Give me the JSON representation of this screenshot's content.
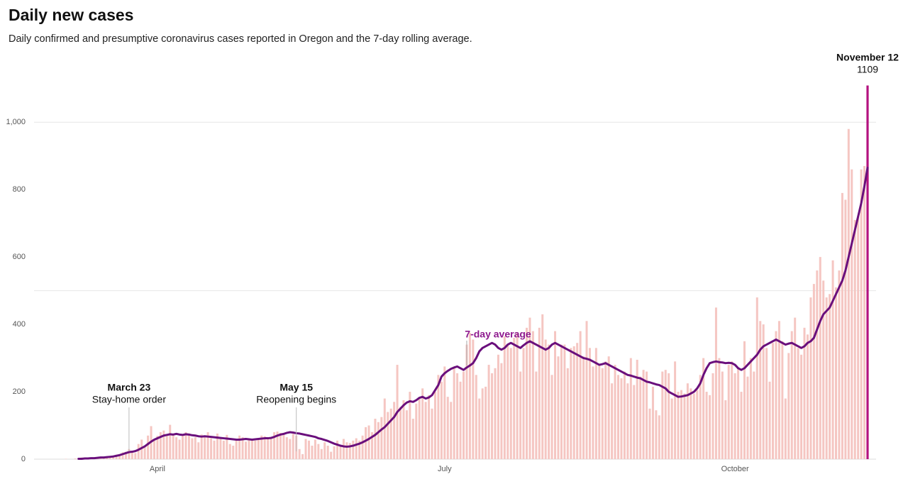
{
  "chart_data": {
    "type": "bar",
    "title": "Daily new cases",
    "subtitle": "Daily confirmed and presumptive coronavirus cases reported in Oregon and the 7-day rolling average.",
    "categories": [
      null,
      null,
      null,
      null,
      null,
      null,
      null,
      null,
      null,
      null,
      null,
      null,
      null,
      null,
      null,
      null,
      null,
      null,
      null,
      null,
      null,
      null,
      null,
      null,
      null,
      null,
      null,
      null,
      null,
      null,
      null,
      "April",
      null,
      null,
      null,
      null,
      null,
      null,
      null,
      null,
      null,
      null,
      null,
      null,
      null,
      null,
      null,
      null,
      null,
      null,
      null,
      null,
      null,
      null,
      null,
      null,
      null,
      null,
      null,
      null,
      null,
      null,
      null,
      null,
      null,
      null,
      null,
      null,
      null,
      null,
      null,
      null,
      null,
      null,
      null,
      null,
      null,
      null,
      null,
      null,
      null,
      null,
      null,
      null,
      null,
      null,
      null,
      null,
      null,
      null,
      null,
      null,
      null,
      null,
      null,
      null,
      null,
      null,
      null,
      null,
      null,
      null,
      null,
      null,
      null,
      null,
      null,
      null,
      null,
      null,
      null,
      null,
      null,
      null,
      null,
      null,
      null,
      null,
      null,
      null,
      null,
      null,
      "July",
      null,
      null,
      null,
      null,
      null,
      null,
      null,
      null,
      null,
      null,
      null,
      null,
      null,
      null,
      null,
      null,
      null,
      null,
      null,
      null,
      null,
      null,
      null,
      null,
      null,
      null,
      null,
      null,
      null,
      null,
      null,
      null,
      null,
      null,
      null,
      null,
      null,
      null,
      null,
      null,
      null,
      null,
      null,
      null,
      null,
      null,
      null,
      null,
      null,
      null,
      null,
      null,
      null,
      null,
      null,
      null,
      null,
      null,
      null,
      null,
      null,
      null,
      null,
      null,
      null,
      null,
      null,
      null,
      null,
      null,
      null,
      null,
      null,
      null,
      null,
      null,
      null,
      null,
      null,
      null,
      null,
      null,
      null,
      null,
      null,
      null,
      null,
      null,
      null,
      null,
      null,
      "October",
      null,
      null,
      null,
      null,
      null,
      null,
      null,
      null,
      null,
      null,
      null,
      null,
      null,
      null,
      null,
      null,
      null,
      null,
      null,
      null,
      null,
      null,
      null,
      null,
      null,
      null,
      null,
      null,
      null,
      null,
      null,
      null,
      null,
      null,
      null,
      null,
      null,
      null,
      null,
      null,
      null,
      null
    ],
    "series": [
      {
        "color": "#f5c6c2",
        "highlight_color": "#b3127f",
        "highlight_index": 256,
        "values": [
          0,
          0,
          1,
          0,
          0,
          2,
          0,
          5,
          1,
          3,
          0,
          4,
          2,
          6,
          3,
          5,
          8,
          10,
          13,
          12,
          20,
          22,
          30,
          24,
          18,
          45,
          58,
          40,
          70,
          98,
          60,
          69,
          80,
          85,
          70,
          102,
          75,
          65,
          58,
          70,
          80,
          76,
          62,
          65,
          50,
          73,
          68,
          80,
          62,
          55,
          76,
          60,
          55,
          72,
          45,
          40,
          58,
          70,
          65,
          52,
          60,
          58,
          55,
          62,
          70,
          68,
          60,
          66,
          80,
          82,
          78,
          72,
          65,
          60,
          75,
          70,
          30,
          15,
          60,
          55,
          40,
          58,
          45,
          30,
          50,
          40,
          22,
          38,
          55,
          42,
          60,
          50,
          48,
          55,
          62,
          55,
          70,
          95,
          100,
          80,
          120,
          110,
          125,
          180,
          140,
          150,
          170,
          280,
          155,
          175,
          145,
          200,
          120,
          165,
          180,
          210,
          170,
          190,
          150,
          200,
          250,
          230,
          275,
          185,
          170,
          275,
          255,
          230,
          260,
          340,
          375,
          355,
          250,
          180,
          210,
          215,
          280,
          255,
          270,
          310,
          285,
          365,
          340,
          330,
          360,
          375,
          260,
          330,
          390,
          420,
          380,
          260,
          390,
          430,
          355,
          340,
          250,
          380,
          305,
          340,
          340,
          270,
          330,
          335,
          345,
          380,
          305,
          410,
          330,
          275,
          330,
          280,
          270,
          290,
          305,
          225,
          280,
          250,
          240,
          260,
          225,
          300,
          220,
          295,
          245,
          265,
          260,
          150,
          215,
          145,
          130,
          260,
          265,
          255,
          180,
          290,
          200,
          205,
          195,
          225,
          210,
          195,
          205,
          250,
          300,
          200,
          190,
          255,
          450,
          300,
          260,
          175,
          280,
          290,
          255,
          270,
          200,
          350,
          245,
          300,
          260,
          480,
          410,
          400,
          330,
          230,
          345,
          380,
          410,
          350,
          180,
          315,
          380,
          420,
          330,
          310,
          390,
          370,
          480,
          520,
          560,
          600,
          530,
          480,
          490,
          590,
          510,
          560,
          790,
          770,
          980,
          860,
          710,
          720,
          860,
          870,
          1109
        ]
      },
      {
        "name": "7-day average",
        "type": "line",
        "color": "#6a0f7c",
        "values": [
          null,
          null,
          null,
          null,
          null,
          null,
          1,
          1,
          2,
          2,
          3,
          3,
          4,
          5,
          5,
          6,
          7,
          8,
          10,
          12,
          15,
          18,
          21,
          22,
          24,
          28,
          33,
          38,
          45,
          52,
          58,
          62,
          66,
          70,
          72,
          74,
          73,
          75,
          73,
          72,
          74,
          73,
          71,
          70,
          68,
          67,
          68,
          67,
          66,
          65,
          64,
          63,
          62,
          61,
          60,
          59,
          58,
          58,
          59,
          60,
          59,
          58,
          59,
          60,
          61,
          62,
          62,
          63,
          66,
          70,
          73,
          75,
          78,
          80,
          79,
          77,
          76,
          74,
          72,
          70,
          68,
          66,
          62,
          60,
          57,
          54,
          50,
          46,
          43,
          40,
          38,
          37,
          38,
          40,
          43,
          46,
          50,
          55,
          60,
          66,
          72,
          80,
          88,
          95,
          105,
          115,
          125,
          140,
          150,
          160,
          168,
          172,
          170,
          175,
          182,
          185,
          180,
          183,
          190,
          205,
          220,
          245,
          255,
          262,
          268,
          272,
          275,
          270,
          265,
          272,
          278,
          285,
          300,
          320,
          330,
          335,
          340,
          345,
          340,
          330,
          325,
          330,
          340,
          345,
          340,
          335,
          330,
          338,
          345,
          350,
          345,
          340,
          335,
          330,
          325,
          330,
          340,
          345,
          340,
          335,
          330,
          325,
          320,
          315,
          310,
          305,
          300,
          298,
          295,
          290,
          285,
          280,
          282,
          285,
          280,
          275,
          270,
          265,
          260,
          255,
          250,
          248,
          245,
          242,
          240,
          235,
          230,
          228,
          225,
          222,
          220,
          215,
          210,
          200,
          195,
          190,
          185,
          186,
          188,
          190,
          195,
          200,
          210,
          225,
          250,
          270,
          285,
          288,
          290,
          288,
          287,
          285,
          286,
          285,
          280,
          270,
          265,
          270,
          280,
          290,
          300,
          310,
          325,
          335,
          340,
          345,
          350,
          355,
          350,
          345,
          340,
          343,
          345,
          340,
          335,
          330,
          335,
          345,
          350,
          360,
          385,
          410,
          430,
          440,
          450,
          470,
          490,
          510,
          530,
          560,
          600,
          640,
          680,
          720,
          760,
          810,
          865
        ]
      }
    ],
    "ylim": [
      0,
      1150
    ],
    "yticks": [
      0,
      200,
      400,
      600,
      800,
      {
        "value": 1000,
        "label": "1,000"
      }
    ],
    "grid_lines": [
      500,
      1000
    ],
    "annotations": [
      {
        "label": "March 23",
        "text": "Stay-home order",
        "index": 22
      },
      {
        "label": "May 15",
        "text": "Reopening begins",
        "index": 75
      },
      {
        "label": "November 12",
        "index": 256
      }
    ]
  }
}
